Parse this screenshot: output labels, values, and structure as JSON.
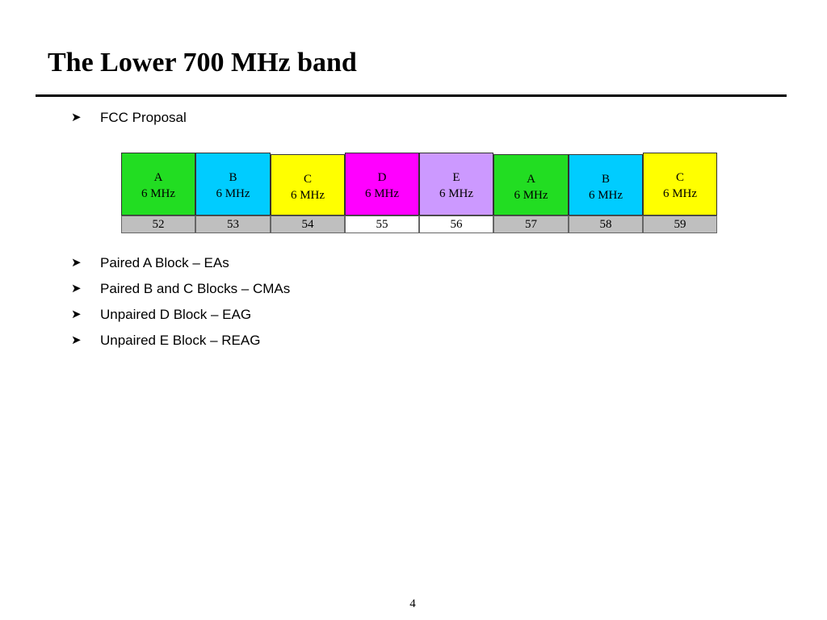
{
  "slide": {
    "title": "The Lower 700 MHz band",
    "page_number": "4"
  },
  "bullets": [
    {
      "text": "FCC Proposal"
    },
    {
      "text": "Paired A Block – EAs"
    },
    {
      "text": "Paired B and C Blocks – CMAs"
    },
    {
      "text": "Unpaired D Block – EAG"
    },
    {
      "text": "Unpaired E Block – REAG"
    }
  ],
  "band_plan": {
    "blocks": [
      {
        "name": "A",
        "size": "6 MHz",
        "channel": "52",
        "color": "#22dd22",
        "channel_color": "#bfbfbf"
      },
      {
        "name": "B",
        "size": "6 MHz",
        "channel": "53",
        "color": "#00ccff",
        "channel_color": "#bfbfbf"
      },
      {
        "name": "C",
        "size": "6 MHz",
        "channel": "54",
        "color": "#ffff00",
        "channel_color": "#bfbfbf"
      },
      {
        "name": "D",
        "size": "6 MHz",
        "channel": "55",
        "color": "#ff00ff",
        "channel_color": "#ffffff"
      },
      {
        "name": "E",
        "size": "6 MHz",
        "channel": "56",
        "color": "#cc99ff",
        "channel_color": "#ffffff"
      },
      {
        "name": "A",
        "size": "6 MHz",
        "channel": "57",
        "color": "#22dd22",
        "channel_color": "#bfbfbf"
      },
      {
        "name": "B",
        "size": "6 MHz",
        "channel": "58",
        "color": "#00ccff",
        "channel_color": "#bfbfbf"
      },
      {
        "name": "C",
        "size": "6 MHz",
        "channel": "59",
        "color": "#ffff00",
        "channel_color": "#bfbfbf"
      }
    ]
  }
}
